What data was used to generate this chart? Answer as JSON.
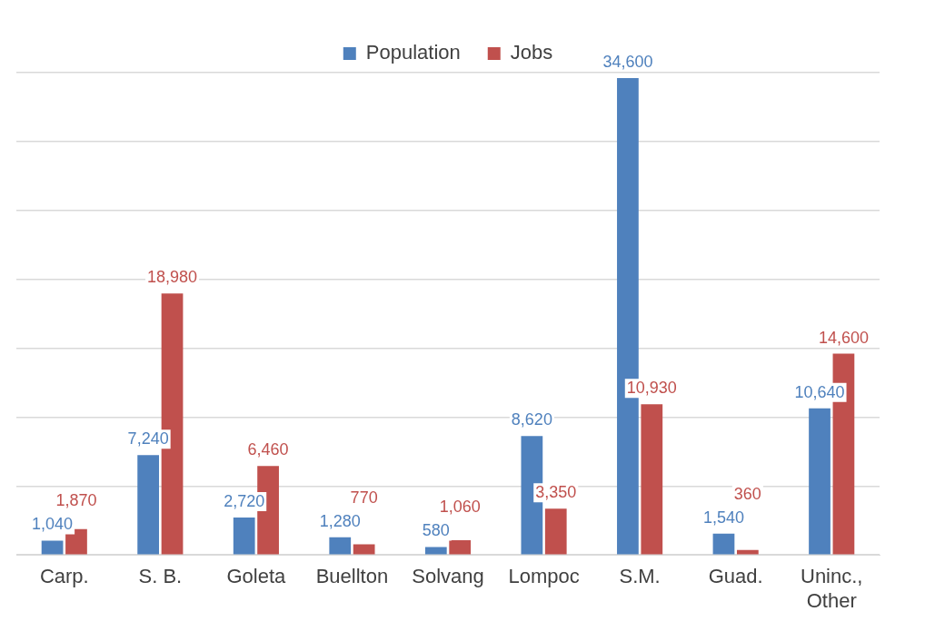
{
  "chart_data": {
    "type": "bar",
    "categories": [
      "Carp.",
      "S. B.",
      "Goleta",
      "Buellton",
      "Solvang",
      "Lompoc",
      "S.M.",
      "Guad.",
      "Uninc., Other"
    ],
    "series": [
      {
        "name": "Population",
        "color": "#4f81bd",
        "values": [
          1040,
          7240,
          2720,
          1280,
          580,
          8620,
          34600,
          1540,
          10640
        ],
        "value_labels": [
          "1,040",
          "7,240",
          "2,720",
          "1,280",
          "580",
          "8,620",
          "34,600",
          "1,540",
          "10,640"
        ]
      },
      {
        "name": "Jobs",
        "color": "#c0504d",
        "values": [
          1870,
          18980,
          6460,
          770,
          1060,
          3350,
          10930,
          360,
          14600
        ],
        "value_labels": [
          "1,870",
          "18,980",
          "6,460",
          "770",
          "1,060",
          "3,350",
          "10,930",
          "360",
          "14,600"
        ]
      }
    ],
    "ylim": [
      0,
      35000
    ],
    "yticks": [
      0,
      5000,
      10000,
      15000,
      20000,
      25000,
      30000,
      35000
    ],
    "tick_labels": "x",
    "grid": "y",
    "legend": "top"
  }
}
